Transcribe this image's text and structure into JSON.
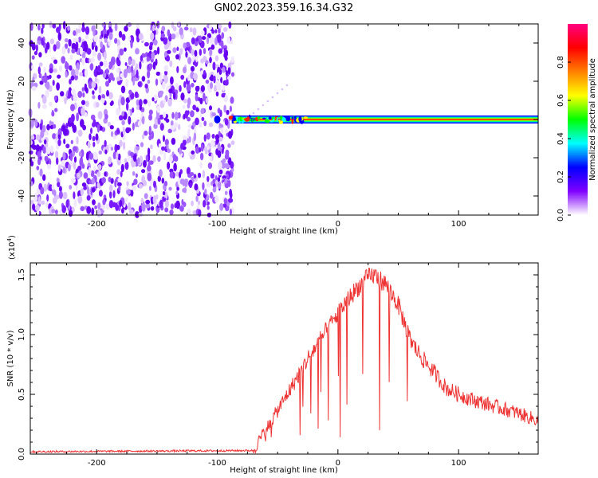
{
  "title": "GN02.2023.359.16.34.G32",
  "chart_data": [
    {
      "type": "heatmap",
      "xlabel": "Height of straight line (km)",
      "ylabel": "Frequency (Hz)",
      "xlim": [
        -255,
        166
      ],
      "ylim": [
        -50,
        50
      ],
      "xticks": [
        -200,
        -100,
        0,
        100
      ],
      "yticks": [
        -40,
        -20,
        0,
        20,
        40
      ],
      "noise_region_x": [
        -255,
        -87
      ],
      "signal_band_hz": [
        -2,
        2
      ],
      "signal_start_x": -100,
      "colorbar": {
        "label": "Normalized spectral amplitude",
        "range": [
          0.0,
          1.0
        ],
        "ticks": [
          "0.0",
          "0.2",
          "0.4",
          "0.6",
          "0.8"
        ],
        "colors": [
          "#ffffff",
          "#8000ff",
          "#0000ff",
          "#00ffff",
          "#00ff00",
          "#ffff00",
          "#ff8000",
          "#ff0000",
          "#ff0080"
        ]
      }
    },
    {
      "type": "line",
      "xlabel": "Height of straight line (km)",
      "ylabel": "SNR (10 * v/v)",
      "multiplier_label": "(x10",
      "multiplier_exp": "4",
      "xlim": [
        -255,
        166
      ],
      "ylim": [
        0.0,
        1.6
      ],
      "xticks": [
        -200,
        -100,
        0,
        100
      ],
      "yticks": [
        "0.0",
        "0.5",
        "1.0",
        "1.5"
      ],
      "line_color": "#ee3333",
      "envelope": {
        "x": [
          -255,
          -70,
          -65,
          -55,
          -45,
          -35,
          -25,
          -15,
          -5,
          5,
          15,
          25,
          30,
          40,
          50,
          60,
          70,
          80,
          90,
          100,
          110,
          120,
          130,
          140,
          150,
          166
        ],
        "y": [
          0.02,
          0.03,
          0.12,
          0.28,
          0.45,
          0.62,
          0.8,
          0.95,
          1.1,
          1.25,
          1.38,
          1.48,
          1.5,
          1.42,
          1.25,
          0.95,
          0.8,
          0.68,
          0.55,
          0.5,
          0.46,
          0.43,
          0.4,
          0.37,
          0.34,
          0.28
        ]
      }
    }
  ]
}
